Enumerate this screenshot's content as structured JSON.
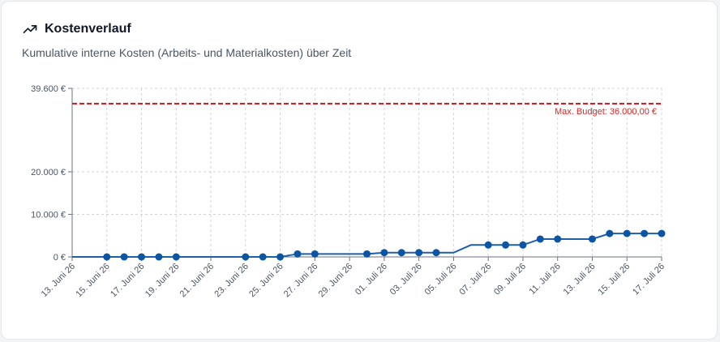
{
  "card": {
    "title": "Kostenverlauf",
    "subtitle": "Kumulative interne Kosten (Arbeits- und Materialkosten) über Zeit",
    "icon": "trending-up-icon"
  },
  "colors": {
    "line": "#1f5fa8",
    "point": "#0b55a3",
    "budget": "#d4111e",
    "grid": "#d1d5db",
    "axis": "#6b7280"
  },
  "chart_data": {
    "type": "line",
    "title": "Kostenverlauf",
    "xlabel": "",
    "ylabel": "",
    "grid": true,
    "ylim": [
      0,
      39600
    ],
    "y_ticks": [
      {
        "value": 0,
        "label": "0 €"
      },
      {
        "value": 10000,
        "label": "10.000 €"
      },
      {
        "value": 20000,
        "label": "20.000 €"
      },
      {
        "value": 39600,
        "label": "39.600 €"
      }
    ],
    "x_ticks": [
      "13. Juni 26",
      "15. Juni 26",
      "17. Juni 26",
      "19. Juni 26",
      "21. Juni 26",
      "23. Juni 26",
      "25. Juni 26",
      "27. Juni 26",
      "29. Juni 26",
      "01. Juli 26",
      "03. Juli 26",
      "05. Juli 26",
      "07. Juli 26",
      "09. Juli 26",
      "11. Juli 26",
      "13. Juli 26",
      "15. Juli 26",
      "17. Juli 26"
    ],
    "x": [
      "13. Juni 26",
      "14. Juni 26",
      "15. Juni 26",
      "16. Juni 26",
      "17. Juni 26",
      "18. Juni 26",
      "19. Juni 26",
      "20. Juni 26",
      "21. Juni 26",
      "22. Juni 26",
      "23. Juni 26",
      "24. Juni 26",
      "25. Juni 26",
      "26. Juni 26",
      "27. Juni 26",
      "28. Juni 26",
      "29. Juni 26",
      "30. Juni 26",
      "01. Juli 26",
      "02. Juli 26",
      "03. Juli 26",
      "04. Juli 26",
      "05. Juli 26",
      "06. Juli 26",
      "07. Juli 26",
      "08. Juli 26",
      "09. Juli 26",
      "10. Juli 26",
      "11. Juli 26",
      "12. Juli 26",
      "13. Juli 26",
      "14. Juli 26",
      "15. Juli 26",
      "16. Juli 26",
      "17. Juli 26"
    ],
    "series": [
      {
        "values": [
          0,
          0,
          0,
          0,
          0,
          0,
          0,
          0,
          0,
          0,
          0,
          0,
          0,
          700,
          700,
          700,
          700,
          700,
          1000,
          1000,
          1000,
          1000,
          1000,
          2800,
          2800,
          2800,
          2800,
          4200,
          4200,
          4200,
          4200,
          5500,
          5500,
          5500,
          5500
        ],
        "markers": [
          false,
          false,
          true,
          true,
          true,
          true,
          true,
          false,
          false,
          false,
          true,
          true,
          true,
          true,
          true,
          false,
          false,
          true,
          true,
          true,
          true,
          true,
          false,
          false,
          true,
          true,
          true,
          true,
          true,
          false,
          true,
          true,
          true,
          true,
          true
        ]
      }
    ],
    "reference_line": {
      "value": 36000,
      "label": "Max. Budget: 36.000,00 €"
    }
  }
}
